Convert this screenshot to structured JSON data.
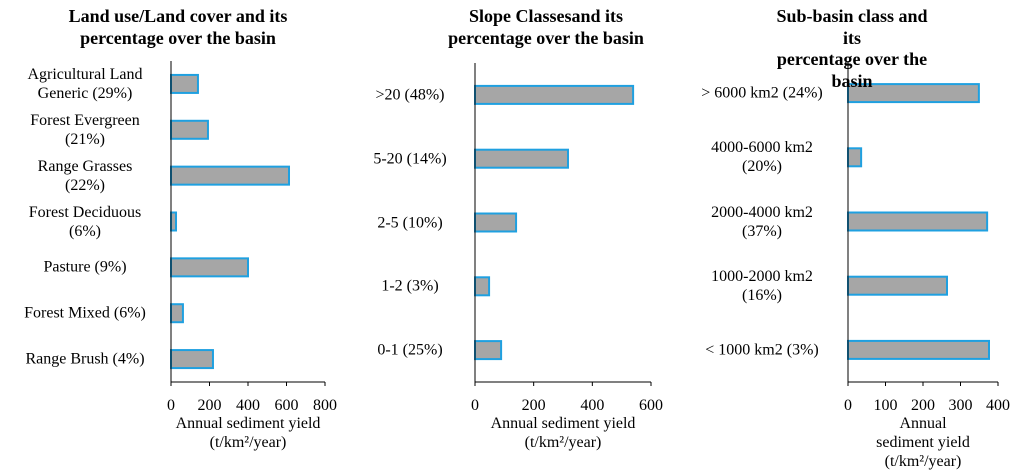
{
  "chart_data": [
    {
      "type": "bar",
      "orientation": "horizontal",
      "title": "Land use/Land cover and its\npercentage over the basin",
      "categories": [
        "Agricultural Land\nGeneric (29%)",
        "Forest Evergreen\n(21%)",
        "Range Grasses\n(22%)",
        "Forest Deciduous\n(6%)",
        "Pasture (9%)",
        "Forest Mixed (6%)",
        "Range Brush (4%)"
      ],
      "values": [
        140,
        192,
        613,
        26,
        400,
        62,
        218
      ],
      "color": "#a6a6a6",
      "edge_color": "#1fa0e0",
      "xlim": [
        0,
        800
      ],
      "xticks": [
        0,
        200,
        400,
        600,
        800
      ],
      "x_label": "Annual sediment yield\n(t/km²/year)"
    },
    {
      "type": "bar",
      "orientation": "horizontal",
      "title": "Slope Classesand its\npercentage over the basin",
      "categories": [
        ">20 (48%)",
        "5-20 (14%)",
        "2-5 (10%)",
        "1-2 (3%)",
        "0-1 (25%)"
      ],
      "values": [
        539,
        317,
        140,
        48,
        89
      ],
      "color": "#a6a6a6",
      "edge_color": "#1fa0e0",
      "xlim": [
        0,
        600
      ],
      "xticks": [
        0,
        200,
        400,
        600
      ],
      "x_label": "Annual sediment yield\n(t/km²/year)"
    },
    {
      "type": "bar",
      "orientation": "horizontal",
      "title": "Sub-basin class and its\npercentage over the basin",
      "categories": [
        "> 6000 km2 (24%)",
        "4000-6000 km2\n(20%)",
        "2000-4000 km2\n(37%)",
        "1000-2000 km2\n(16%)",
        "< 1000 km2 (3%)"
      ],
      "values": [
        349,
        35,
        371,
        264,
        376
      ],
      "color": "#a6a6a6",
      "edge_color": "#1fa0e0",
      "xlim": [
        0,
        400
      ],
      "xticks": [
        0,
        100,
        200,
        300,
        400
      ],
      "x_label": "Annual sediment yield\n(t/km²/year)"
    }
  ]
}
